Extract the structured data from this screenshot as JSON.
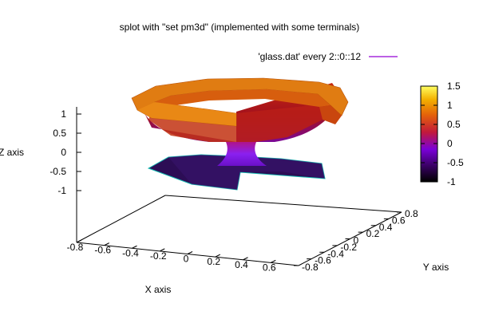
{
  "chart_data": {
    "type": "surface",
    "title": "splot with \"set pm3d\" (implemented with some terminals)",
    "xlabel": "X axis",
    "ylabel": "Y axis",
    "zlabel": "Z axis",
    "legend": {
      "label": "'glass.dat' every 2::0::12",
      "color": "#9400d3",
      "placement": "top-right"
    },
    "xlim": [
      -0.8,
      0.8
    ],
    "ylim": [
      -0.8,
      0.8
    ],
    "zlim": [
      -1,
      1
    ],
    "xticks": [
      "-0.8",
      "-0.6",
      "-0.4",
      "-0.2",
      "0",
      "0.2",
      "0.4",
      "0.6"
    ],
    "yticks": [
      "-0.8",
      "-0.6",
      "-0.4",
      "-0.2",
      "0",
      "0.2",
      "0.4",
      "0.6",
      "0.8"
    ],
    "zticks": [
      "-1",
      "-0.5",
      "0",
      "0.5",
      "1"
    ],
    "colorbar": {
      "range": [
        -1,
        1.5
      ],
      "ticks": [
        "-1",
        "-0.5",
        "0",
        "0.5",
        "1",
        "1.5"
      ],
      "palette": [
        "#000000",
        "#3a0066",
        "#7a00d8",
        "#c21a3a",
        "#e4620a",
        "#f3b000",
        "#ffff60"
      ]
    },
    "surface": {
      "description_free": true,
      "rim_z": 1.0,
      "stem_z": [
        0.0,
        -0.6
      ],
      "base_z": -0.6,
      "colors": {
        "rim_top": "#e07c12",
        "rim_inner": "#cf4a0e",
        "bowl": "#a8101e",
        "bowl_low": "#7a0896",
        "stem": "#8f1ff0",
        "base": "#2c0d55",
        "base_edge": "#14b8b0"
      }
    }
  }
}
